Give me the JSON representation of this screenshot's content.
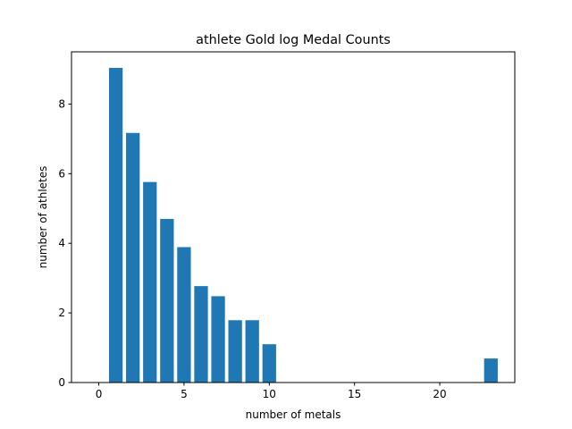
{
  "chart_data": {
    "type": "bar",
    "title": "athlete Gold log Medal Counts",
    "xlabel": "number of metals",
    "ylabel": "number of athletes",
    "x": [
      1,
      2,
      3,
      4,
      5,
      6,
      7,
      8,
      9,
      10,
      23
    ],
    "values": [
      9.04,
      7.17,
      5.76,
      4.7,
      3.89,
      2.77,
      2.48,
      1.79,
      1.79,
      1.1,
      0.69
    ],
    "xlim": [
      -1.6,
      24.4
    ],
    "ylim": [
      0,
      9.5
    ],
    "xticks": [
      0,
      5,
      10,
      15,
      20
    ],
    "yticks": [
      0,
      2,
      4,
      6,
      8
    ],
    "bar_width": 0.8,
    "bar_color": "#1f77b4",
    "grid": false
  }
}
